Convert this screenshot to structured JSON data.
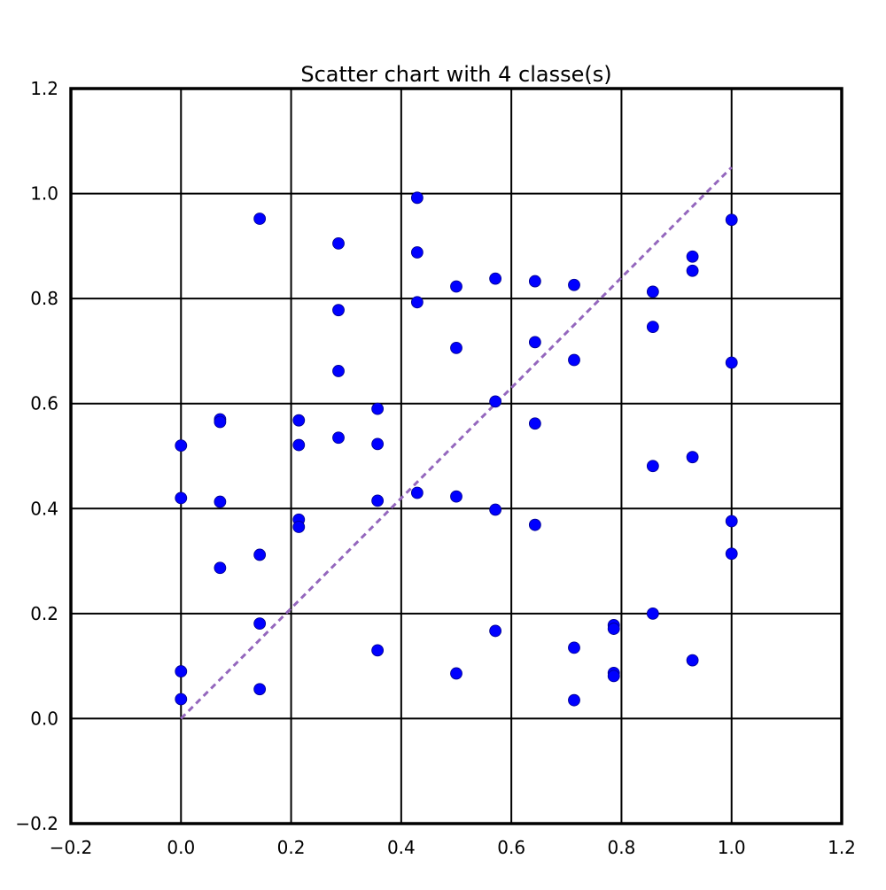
{
  "chart_data": {
    "type": "scatter",
    "title": "Scatter chart with 4 classe(s)",
    "xlabel": "",
    "ylabel": "",
    "xlim": [
      -0.2,
      1.2
    ],
    "ylim": [
      -0.2,
      1.2
    ],
    "xticks": [
      "−0.2",
      "0.0",
      "0.2",
      "0.4",
      "0.6",
      "0.8",
      "1.0",
      "1.2"
    ],
    "yticks": [
      "−0.2",
      "0.0",
      "0.2",
      "0.4",
      "0.6",
      "0.8",
      "1.0",
      "1.2"
    ],
    "grid": true,
    "legend": "none",
    "colors": {
      "points": "#0000ff",
      "reference_line": "#9467bd",
      "grid": "#000000"
    },
    "reference_line": {
      "style": "dashed",
      "x": [
        0.0,
        1.0
      ],
      "y": [
        0.0,
        1.05
      ]
    },
    "points": [
      {
        "x": 0.0,
        "y": 0.52
      },
      {
        "x": 0.0,
        "y": 0.42
      },
      {
        "x": 0.0,
        "y": 0.09
      },
      {
        "x": 0.0,
        "y": 0.037
      },
      {
        "x": 0.071,
        "y": 0.57
      },
      {
        "x": 0.071,
        "y": 0.565
      },
      {
        "x": 0.071,
        "y": 0.413
      },
      {
        "x": 0.071,
        "y": 0.287
      },
      {
        "x": 0.143,
        "y": 0.952
      },
      {
        "x": 0.143,
        "y": 0.312
      },
      {
        "x": 0.143,
        "y": 0.181
      },
      {
        "x": 0.143,
        "y": 0.056
      },
      {
        "x": 0.214,
        "y": 0.568
      },
      {
        "x": 0.214,
        "y": 0.521
      },
      {
        "x": 0.214,
        "y": 0.379
      },
      {
        "x": 0.214,
        "y": 0.365
      },
      {
        "x": 0.286,
        "y": 0.905
      },
      {
        "x": 0.286,
        "y": 0.778
      },
      {
        "x": 0.286,
        "y": 0.662
      },
      {
        "x": 0.286,
        "y": 0.535
      },
      {
        "x": 0.357,
        "y": 0.59
      },
      {
        "x": 0.357,
        "y": 0.523
      },
      {
        "x": 0.357,
        "y": 0.415
      },
      {
        "x": 0.357,
        "y": 0.13
      },
      {
        "x": 0.429,
        "y": 0.992
      },
      {
        "x": 0.429,
        "y": 0.888
      },
      {
        "x": 0.429,
        "y": 0.793
      },
      {
        "x": 0.429,
        "y": 0.43
      },
      {
        "x": 0.5,
        "y": 0.823
      },
      {
        "x": 0.5,
        "y": 0.706
      },
      {
        "x": 0.5,
        "y": 0.423
      },
      {
        "x": 0.5,
        "y": 0.086
      },
      {
        "x": 0.571,
        "y": 0.838
      },
      {
        "x": 0.571,
        "y": 0.604
      },
      {
        "x": 0.571,
        "y": 0.398
      },
      {
        "x": 0.571,
        "y": 0.167
      },
      {
        "x": 0.643,
        "y": 0.833
      },
      {
        "x": 0.643,
        "y": 0.717
      },
      {
        "x": 0.643,
        "y": 0.562
      },
      {
        "x": 0.643,
        "y": 0.369
      },
      {
        "x": 0.714,
        "y": 0.826
      },
      {
        "x": 0.714,
        "y": 0.683
      },
      {
        "x": 0.714,
        "y": 0.135
      },
      {
        "x": 0.714,
        "y": 0.035
      },
      {
        "x": 0.786,
        "y": 0.178
      },
      {
        "x": 0.786,
        "y": 0.171
      },
      {
        "x": 0.786,
        "y": 0.087
      },
      {
        "x": 0.786,
        "y": 0.081
      },
      {
        "x": 0.857,
        "y": 0.813
      },
      {
        "x": 0.857,
        "y": 0.746
      },
      {
        "x": 0.857,
        "y": 0.481
      },
      {
        "x": 0.857,
        "y": 0.2
      },
      {
        "x": 0.929,
        "y": 0.88
      },
      {
        "x": 0.929,
        "y": 0.853
      },
      {
        "x": 0.929,
        "y": 0.498
      },
      {
        "x": 0.929,
        "y": 0.111
      },
      {
        "x": 1.0,
        "y": 0.95
      },
      {
        "x": 1.0,
        "y": 0.678
      },
      {
        "x": 1.0,
        "y": 0.376
      },
      {
        "x": 1.0,
        "y": 0.314
      }
    ]
  }
}
